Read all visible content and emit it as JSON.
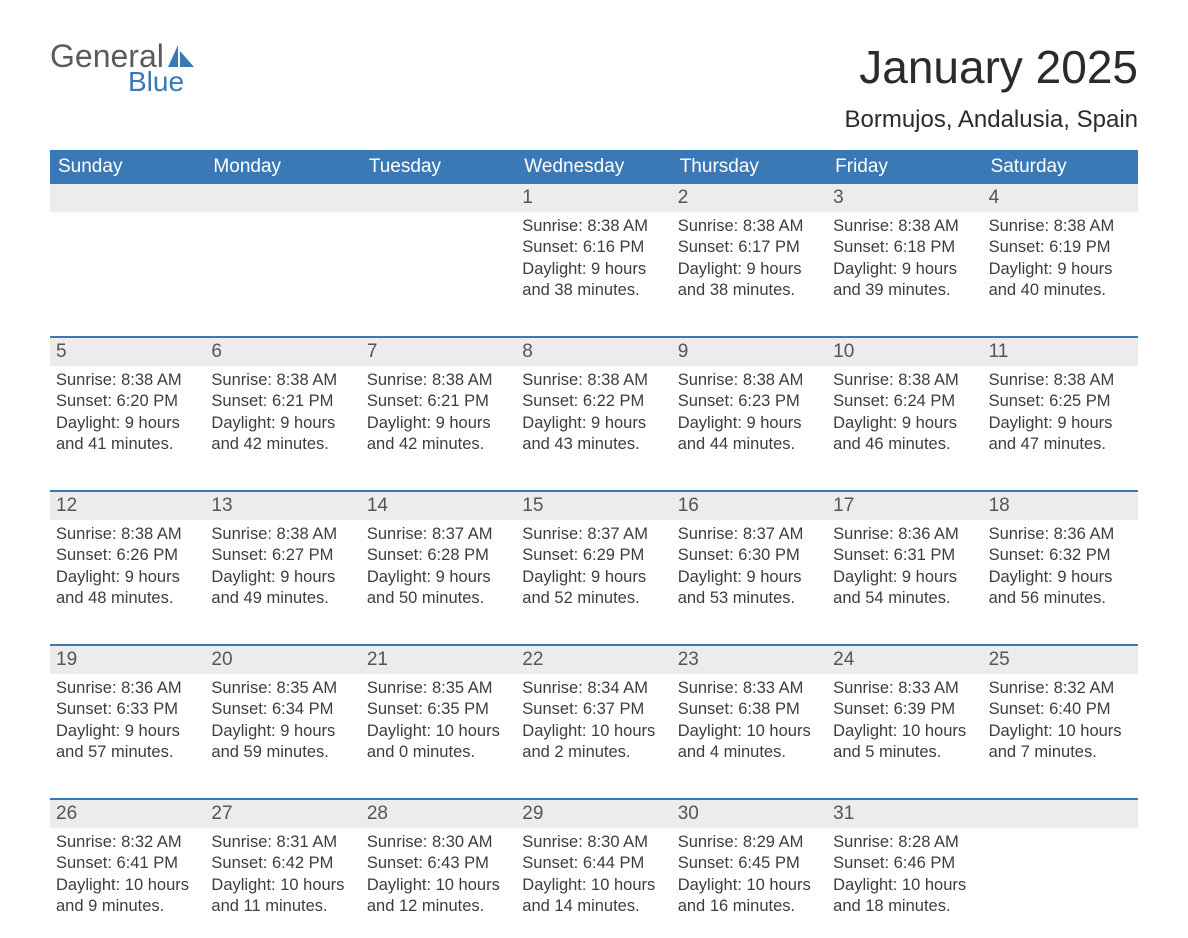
{
  "logo": {
    "word1": "General",
    "word2": "Blue",
    "text_color": "#5b5b5b",
    "accent_color": "#3a78b6"
  },
  "title": "January 2025",
  "location": "Bormujos, Andalusia, Spain",
  "day_names": [
    "Sunday",
    "Monday",
    "Tuesday",
    "Wednesday",
    "Thursday",
    "Friday",
    "Saturday"
  ],
  "colors": {
    "header_bg": "#3a78b6",
    "header_text": "#ffffff",
    "daynum_bg": "#ececec",
    "text": "#3d3d3d",
    "rule": "#3a78b6"
  },
  "weeks": [
    [
      {
        "n": "",
        "lines": []
      },
      {
        "n": "",
        "lines": []
      },
      {
        "n": "",
        "lines": []
      },
      {
        "n": "1",
        "lines": [
          "Sunrise: 8:38 AM",
          "Sunset: 6:16 PM",
          "Daylight: 9 hours",
          "and 38 minutes."
        ]
      },
      {
        "n": "2",
        "lines": [
          "Sunrise: 8:38 AM",
          "Sunset: 6:17 PM",
          "Daylight: 9 hours",
          "and 38 minutes."
        ]
      },
      {
        "n": "3",
        "lines": [
          "Sunrise: 8:38 AM",
          "Sunset: 6:18 PM",
          "Daylight: 9 hours",
          "and 39 minutes."
        ]
      },
      {
        "n": "4",
        "lines": [
          "Sunrise: 8:38 AM",
          "Sunset: 6:19 PM",
          "Daylight: 9 hours",
          "and 40 minutes."
        ]
      }
    ],
    [
      {
        "n": "5",
        "lines": [
          "Sunrise: 8:38 AM",
          "Sunset: 6:20 PM",
          "Daylight: 9 hours",
          "and 41 minutes."
        ]
      },
      {
        "n": "6",
        "lines": [
          "Sunrise: 8:38 AM",
          "Sunset: 6:21 PM",
          "Daylight: 9 hours",
          "and 42 minutes."
        ]
      },
      {
        "n": "7",
        "lines": [
          "Sunrise: 8:38 AM",
          "Sunset: 6:21 PM",
          "Daylight: 9 hours",
          "and 42 minutes."
        ]
      },
      {
        "n": "8",
        "lines": [
          "Sunrise: 8:38 AM",
          "Sunset: 6:22 PM",
          "Daylight: 9 hours",
          "and 43 minutes."
        ]
      },
      {
        "n": "9",
        "lines": [
          "Sunrise: 8:38 AM",
          "Sunset: 6:23 PM",
          "Daylight: 9 hours",
          "and 44 minutes."
        ]
      },
      {
        "n": "10",
        "lines": [
          "Sunrise: 8:38 AM",
          "Sunset: 6:24 PM",
          "Daylight: 9 hours",
          "and 46 minutes."
        ]
      },
      {
        "n": "11",
        "lines": [
          "Sunrise: 8:38 AM",
          "Sunset: 6:25 PM",
          "Daylight: 9 hours",
          "and 47 minutes."
        ]
      }
    ],
    [
      {
        "n": "12",
        "lines": [
          "Sunrise: 8:38 AM",
          "Sunset: 6:26 PM",
          "Daylight: 9 hours",
          "and 48 minutes."
        ]
      },
      {
        "n": "13",
        "lines": [
          "Sunrise: 8:38 AM",
          "Sunset: 6:27 PM",
          "Daylight: 9 hours",
          "and 49 minutes."
        ]
      },
      {
        "n": "14",
        "lines": [
          "Sunrise: 8:37 AM",
          "Sunset: 6:28 PM",
          "Daylight: 9 hours",
          "and 50 minutes."
        ]
      },
      {
        "n": "15",
        "lines": [
          "Sunrise: 8:37 AM",
          "Sunset: 6:29 PM",
          "Daylight: 9 hours",
          "and 52 minutes."
        ]
      },
      {
        "n": "16",
        "lines": [
          "Sunrise: 8:37 AM",
          "Sunset: 6:30 PM",
          "Daylight: 9 hours",
          "and 53 minutes."
        ]
      },
      {
        "n": "17",
        "lines": [
          "Sunrise: 8:36 AM",
          "Sunset: 6:31 PM",
          "Daylight: 9 hours",
          "and 54 minutes."
        ]
      },
      {
        "n": "18",
        "lines": [
          "Sunrise: 8:36 AM",
          "Sunset: 6:32 PM",
          "Daylight: 9 hours",
          "and 56 minutes."
        ]
      }
    ],
    [
      {
        "n": "19",
        "lines": [
          "Sunrise: 8:36 AM",
          "Sunset: 6:33 PM",
          "Daylight: 9 hours",
          "and 57 minutes."
        ]
      },
      {
        "n": "20",
        "lines": [
          "Sunrise: 8:35 AM",
          "Sunset: 6:34 PM",
          "Daylight: 9 hours",
          "and 59 minutes."
        ]
      },
      {
        "n": "21",
        "lines": [
          "Sunrise: 8:35 AM",
          "Sunset: 6:35 PM",
          "Daylight: 10 hours",
          "and 0 minutes."
        ]
      },
      {
        "n": "22",
        "lines": [
          "Sunrise: 8:34 AM",
          "Sunset: 6:37 PM",
          "Daylight: 10 hours",
          "and 2 minutes."
        ]
      },
      {
        "n": "23",
        "lines": [
          "Sunrise: 8:33 AM",
          "Sunset: 6:38 PM",
          "Daylight: 10 hours",
          "and 4 minutes."
        ]
      },
      {
        "n": "24",
        "lines": [
          "Sunrise: 8:33 AM",
          "Sunset: 6:39 PM",
          "Daylight: 10 hours",
          "and 5 minutes."
        ]
      },
      {
        "n": "25",
        "lines": [
          "Sunrise: 8:32 AM",
          "Sunset: 6:40 PM",
          "Daylight: 10 hours",
          "and 7 minutes."
        ]
      }
    ],
    [
      {
        "n": "26",
        "lines": [
          "Sunrise: 8:32 AM",
          "Sunset: 6:41 PM",
          "Daylight: 10 hours",
          "and 9 minutes."
        ]
      },
      {
        "n": "27",
        "lines": [
          "Sunrise: 8:31 AM",
          "Sunset: 6:42 PM",
          "Daylight: 10 hours",
          "and 11 minutes."
        ]
      },
      {
        "n": "28",
        "lines": [
          "Sunrise: 8:30 AM",
          "Sunset: 6:43 PM",
          "Daylight: 10 hours",
          "and 12 minutes."
        ]
      },
      {
        "n": "29",
        "lines": [
          "Sunrise: 8:30 AM",
          "Sunset: 6:44 PM",
          "Daylight: 10 hours",
          "and 14 minutes."
        ]
      },
      {
        "n": "30",
        "lines": [
          "Sunrise: 8:29 AM",
          "Sunset: 6:45 PM",
          "Daylight: 10 hours",
          "and 16 minutes."
        ]
      },
      {
        "n": "31",
        "lines": [
          "Sunrise: 8:28 AM",
          "Sunset: 6:46 PM",
          "Daylight: 10 hours",
          "and 18 minutes."
        ]
      },
      {
        "n": "",
        "lines": []
      }
    ]
  ]
}
